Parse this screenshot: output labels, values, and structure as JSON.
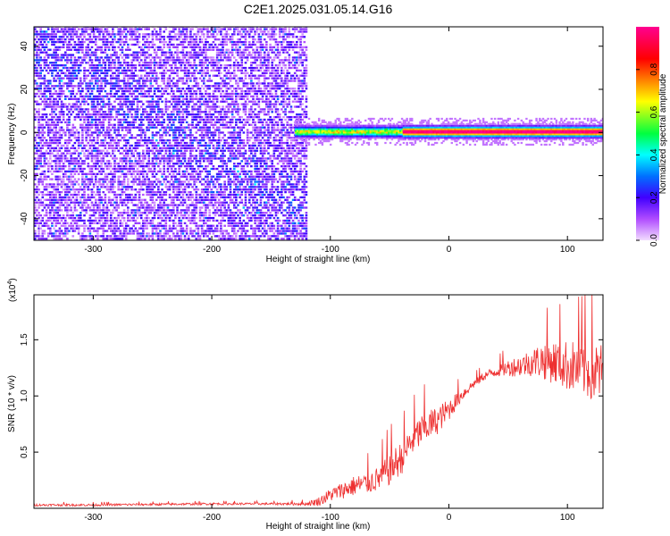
{
  "figure": {
    "title": "C2E1.2025.031.05.14.G16"
  },
  "chart_data": [
    {
      "type": "heatmap",
      "title": "C2E1.2025.031.05.14.G16",
      "xlabel": "Height of straight line (km)",
      "ylabel": "Frequency (Hz)",
      "xlim": [
        -350,
        130
      ],
      "ylim": [
        -50,
        49
      ],
      "xticks": [
        -300,
        -200,
        -100,
        0,
        100
      ],
      "yticks": [
        -40,
        -20,
        0,
        20,
        40
      ],
      "xtick_labels": [
        "-300",
        "-200",
        "-100",
        "0",
        "100"
      ],
      "ytick_labels": [
        "-40",
        "-20",
        "0",
        "20",
        "40"
      ],
      "noise_region_x": [
        -350,
        -120
      ],
      "signal_band": {
        "x_start": -130,
        "x_end": 130,
        "frequency": 0,
        "peak_amplitude_from_x": -40
      },
      "colorbar": {
        "label": "Normalized spectral amplitude",
        "range": [
          0,
          1
        ],
        "ticks": [
          0.0,
          0.2,
          0.4,
          0.6,
          0.8
        ],
        "tick_labels": [
          "0.0",
          "0.2",
          "0.4",
          "0.6",
          "0.8"
        ],
        "colors": [
          "#f2dcff",
          "#b04cff",
          "#4000ff",
          "#0070ff",
          "#00ffff",
          "#00ff40",
          "#ffff00",
          "#ff8000",
          "#ff0000",
          "#ff0090"
        ]
      }
    },
    {
      "type": "line",
      "xlabel": "Height of straight line (km)",
      "ylabel": "SNR (10 * v/v)",
      "scale_label": "(x10",
      "scale_exponent": "4",
      "scale_close": ")",
      "xlim": [
        -350,
        130
      ],
      "ylim": [
        0,
        1.9
      ],
      "xticks": [
        -300,
        -200,
        -100,
        0,
        100
      ],
      "yticks": [
        0.5,
        1.0,
        1.5
      ],
      "xtick_labels": [
        "-300",
        "-200",
        "-100",
        "0",
        "100"
      ],
      "ytick_labels": [
        "0.5",
        "1.0",
        "1.5"
      ],
      "color": "#ee3030",
      "series": [
        {
          "x": [
            -350,
            -300,
            -250,
            -200,
            -150,
            -120,
            -110,
            -100,
            -90,
            -80,
            -70,
            -60,
            -50,
            -40,
            -30,
            -20,
            -10,
            0,
            10,
            20,
            30,
            40,
            50,
            60,
            70,
            80,
            90,
            100,
            110,
            120,
            130
          ],
          "y": [
            0.03,
            0.03,
            0.035,
            0.04,
            0.04,
            0.04,
            0.06,
            0.12,
            0.16,
            0.2,
            0.22,
            0.26,
            0.35,
            0.45,
            0.62,
            0.72,
            0.78,
            0.88,
            1.0,
            1.1,
            1.18,
            1.22,
            1.25,
            1.27,
            1.3,
            1.32,
            1.3,
            1.27,
            1.25,
            1.22,
            1.2
          ],
          "spread": [
            0.02,
            0.02,
            0.02,
            0.02,
            0.02,
            0.03,
            0.08,
            0.12,
            0.15,
            0.18,
            0.2,
            0.22,
            0.3,
            0.3,
            0.3,
            0.3,
            0.25,
            0.2,
            0.12,
            0.08,
            0.08,
            0.1,
            0.15,
            0.2,
            0.25,
            0.35,
            0.4,
            0.45,
            0.5,
            0.55,
            0.55
          ]
        }
      ]
    }
  ]
}
